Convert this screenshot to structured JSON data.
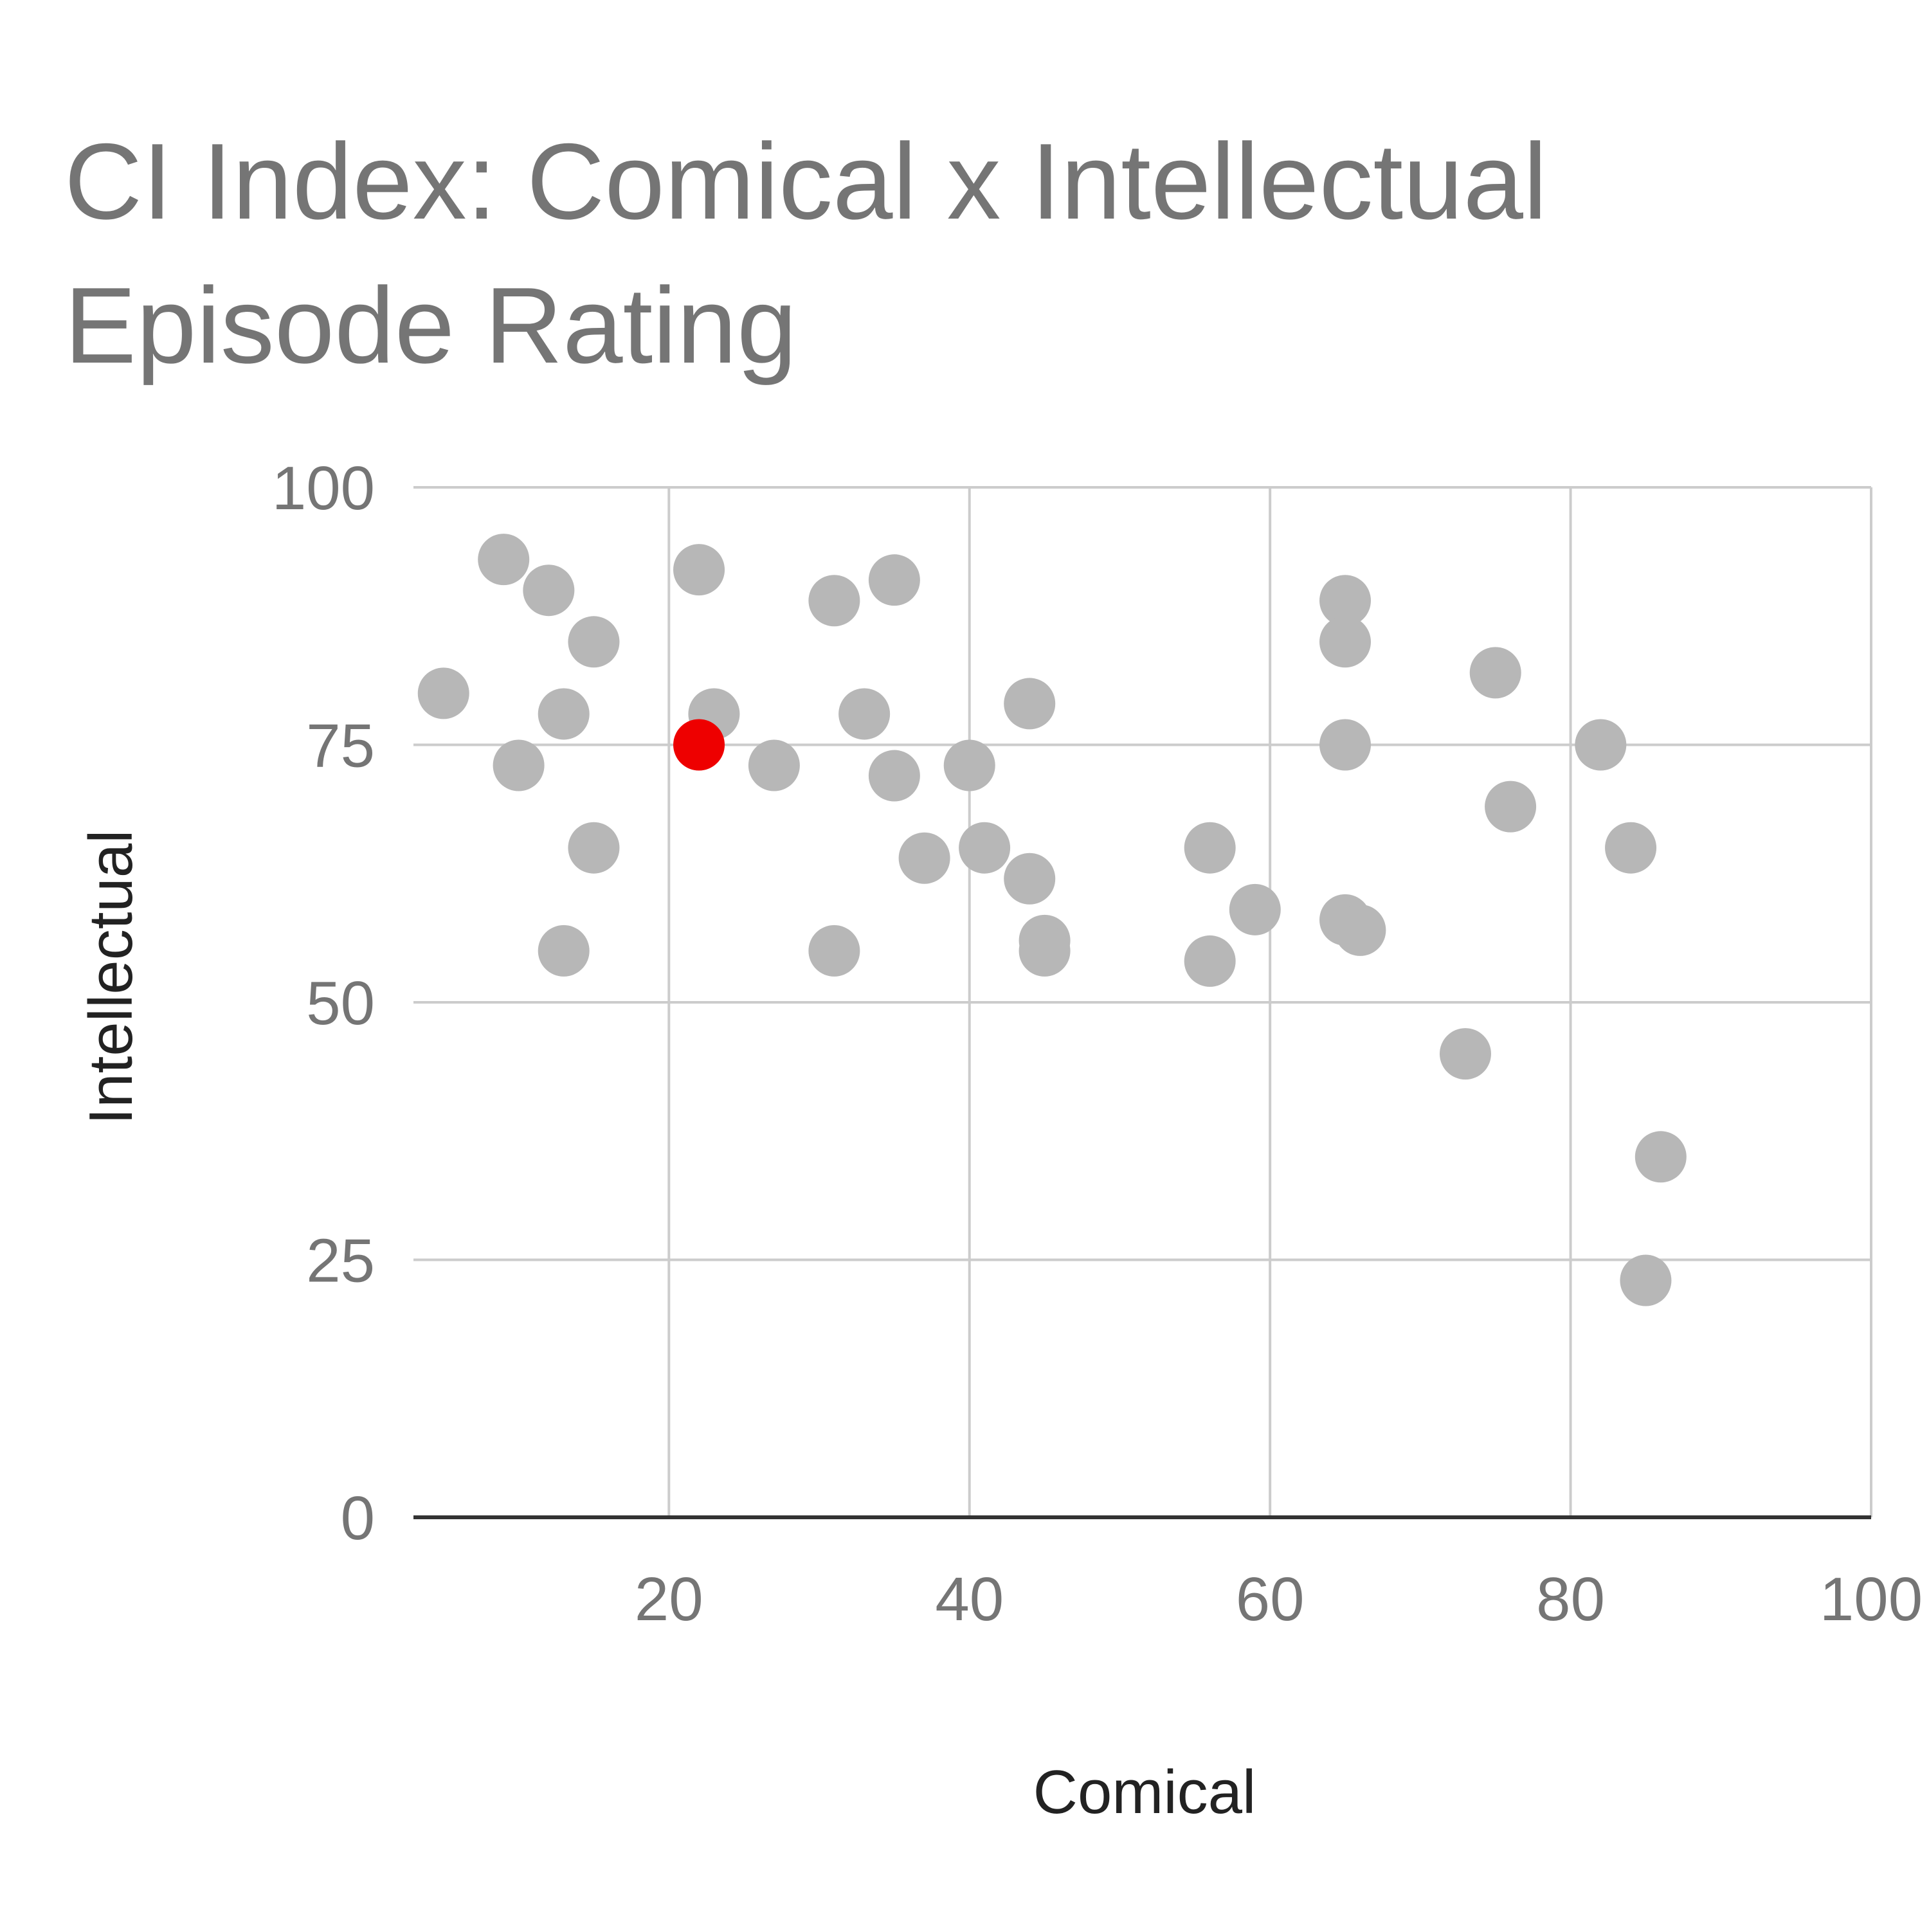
{
  "chart_data": {
    "type": "scatter",
    "title": "CI Index: Comical x Intellectual Episode Rating",
    "xlabel": "Comical",
    "ylabel": "Intellectual",
    "xlim": [
      3,
      100
    ],
    "ylim": [
      0,
      100
    ],
    "x_ticks": [
      20,
      40,
      60,
      80,
      100
    ],
    "y_ticks": [
      0,
      25,
      50,
      75,
      100
    ],
    "grid": true,
    "colors": {
      "point": "#b7b7b7",
      "highlight": "#ee0000",
      "grid": "#cccccc",
      "baseline": "#333333",
      "tick_label": "#757575",
      "axis_label": "#222222",
      "title": "#757575"
    },
    "points": [
      {
        "x": 5,
        "y": 80
      },
      {
        "x": 9,
        "y": 93
      },
      {
        "x": 10,
        "y": 73
      },
      {
        "x": 12,
        "y": 90
      },
      {
        "x": 13,
        "y": 78
      },
      {
        "x": 13,
        "y": 55
      },
      {
        "x": 15,
        "y": 85
      },
      {
        "x": 15,
        "y": 65
      },
      {
        "x": 22,
        "y": 92
      },
      {
        "x": 23,
        "y": 78
      },
      {
        "x": 27,
        "y": 73
      },
      {
        "x": 31,
        "y": 89
      },
      {
        "x": 31,
        "y": 55
      },
      {
        "x": 33,
        "y": 78
      },
      {
        "x": 35,
        "y": 91
      },
      {
        "x": 35,
        "y": 72
      },
      {
        "x": 37,
        "y": 64
      },
      {
        "x": 40,
        "y": 73
      },
      {
        "x": 41,
        "y": 65
      },
      {
        "x": 44,
        "y": 79
      },
      {
        "x": 44,
        "y": 62
      },
      {
        "x": 45,
        "y": 56
      },
      {
        "x": 45,
        "y": 55
      },
      {
        "x": 56,
        "y": 65
      },
      {
        "x": 56,
        "y": 54
      },
      {
        "x": 59,
        "y": 59
      },
      {
        "x": 65,
        "y": 89
      },
      {
        "x": 65,
        "y": 85
      },
      {
        "x": 65,
        "y": 75
      },
      {
        "x": 65,
        "y": 58
      },
      {
        "x": 66,
        "y": 57
      },
      {
        "x": 73,
        "y": 45
      },
      {
        "x": 75,
        "y": 82
      },
      {
        "x": 76,
        "y": 69
      },
      {
        "x": 82,
        "y": 75
      },
      {
        "x": 84,
        "y": 65
      },
      {
        "x": 85,
        "y": 23
      },
      {
        "x": 86,
        "y": 35
      }
    ],
    "highlight_points": [
      {
        "x": 22,
        "y": 75
      }
    ]
  }
}
